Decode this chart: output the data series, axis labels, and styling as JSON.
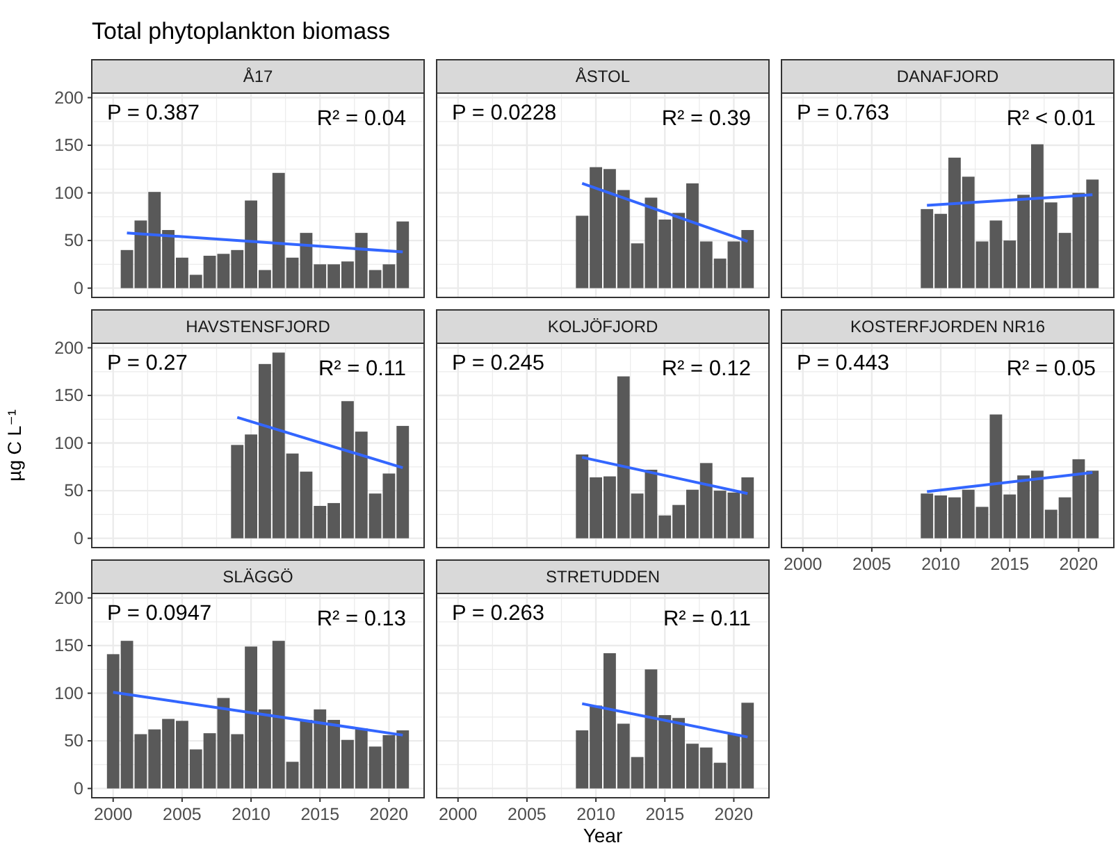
{
  "chart_data": [
    {
      "type": "bar",
      "title": "Total phytoplankton biomass",
      "subtitle": "Å17",
      "xlim": [
        1998.45,
        2022.55
      ],
      "ylim": [
        -9.75,
        204.75
      ],
      "xticks": [
        2000,
        2005,
        2010,
        2015,
        2020
      ],
      "yticks": [
        0,
        50,
        100,
        150,
        200
      ],
      "grid": true,
      "tick_labels": "y",
      "annotations": [
        "P = 0.387",
        "R² = 0.04"
      ],
      "series": [
        {
          "color": "#595959",
          "x": [
            2001,
            2002,
            2003,
            2004,
            2005,
            2006,
            2007,
            2008,
            2009,
            2010,
            2011,
            2012,
            2013,
            2014,
            2015,
            2016,
            2017,
            2018,
            2019,
            2020,
            2021
          ],
          "values": [
            40,
            71,
            101,
            61,
            32,
            14,
            34,
            36,
            40,
            92,
            19,
            121,
            32,
            58,
            25,
            25,
            28,
            58,
            19,
            25,
            70
          ]
        },
        {
          "type": "line",
          "color": "#3366ff",
          "x": [
            2001,
            2021
          ],
          "values": [
            58,
            38
          ]
        }
      ]
    },
    {
      "type": "bar",
      "subtitle": "ÅSTOL",
      "xlim": [
        1998.45,
        2022.55
      ],
      "ylim": [
        -9.75,
        204.75
      ],
      "xticks": [
        2000,
        2005,
        2010,
        2015,
        2020
      ],
      "yticks": [
        0,
        50,
        100,
        150,
        200
      ],
      "grid": true,
      "tick_labels": false,
      "annotations": [
        "P = 0.0228",
        "R² = 0.39"
      ],
      "series": [
        {
          "color": "#595959",
          "x": [
            2009,
            2010,
            2011,
            2012,
            2013,
            2014,
            2015,
            2016,
            2017,
            2018,
            2019,
            2020,
            2021
          ],
          "values": [
            76,
            127,
            125,
            103,
            47,
            95,
            72,
            79,
            110,
            49,
            31,
            49,
            61
          ]
        },
        {
          "type": "line",
          "color": "#3366ff",
          "x": [
            2009,
            2021
          ],
          "values": [
            110,
            49
          ]
        }
      ]
    },
    {
      "type": "bar",
      "subtitle": "DANAFJORD",
      "xlim": [
        1998.45,
        2022.55
      ],
      "ylim": [
        -9.75,
        204.75
      ],
      "xticks": [
        2000,
        2005,
        2010,
        2015,
        2020
      ],
      "yticks": [
        0,
        50,
        100,
        150,
        200
      ],
      "grid": true,
      "tick_labels": false,
      "annotations": [
        "P = 0.763",
        "R² < 0.01"
      ],
      "series": [
        {
          "color": "#595959",
          "x": [
            2009,
            2010,
            2011,
            2012,
            2013,
            2014,
            2015,
            2016,
            2017,
            2018,
            2019,
            2020,
            2021
          ],
          "values": [
            83,
            78,
            137,
            117,
            49,
            71,
            50,
            98,
            151,
            90,
            58,
            100,
            114
          ]
        },
        {
          "type": "line",
          "color": "#3366ff",
          "x": [
            2009,
            2021
          ],
          "values": [
            87,
            98
          ]
        }
      ]
    },
    {
      "type": "bar",
      "subtitle": "HAVSTENSFJORD",
      "ylabel": "µg C L⁻¹",
      "xlim": [
        1998.45,
        2022.55
      ],
      "ylim": [
        -9.75,
        204.75
      ],
      "xticks": [
        2000,
        2005,
        2010,
        2015,
        2020
      ],
      "yticks": [
        0,
        50,
        100,
        150,
        200
      ],
      "grid": true,
      "tick_labels": "y",
      "annotations": [
        "P = 0.27",
        "R² = 0.11"
      ],
      "series": [
        {
          "color": "#595959",
          "x": [
            2009,
            2010,
            2011,
            2012,
            2013,
            2014,
            2015,
            2016,
            2017,
            2018,
            2019,
            2020,
            2021
          ],
          "values": [
            98,
            109,
            183,
            195,
            89,
            70,
            34,
            37,
            144,
            112,
            47,
            68,
            118
          ]
        },
        {
          "type": "line",
          "color": "#3366ff",
          "x": [
            2009,
            2021
          ],
          "values": [
            127,
            74
          ]
        }
      ]
    },
    {
      "type": "bar",
      "subtitle": "KOLJÖFJORD",
      "xlim": [
        1998.45,
        2022.55
      ],
      "ylim": [
        -9.75,
        204.75
      ],
      "xticks": [
        2000,
        2005,
        2010,
        2015,
        2020
      ],
      "yticks": [
        0,
        50,
        100,
        150,
        200
      ],
      "grid": true,
      "tick_labels": false,
      "annotations": [
        "P = 0.245",
        "R² = 0.12"
      ],
      "series": [
        {
          "color": "#595959",
          "x": [
            2009,
            2010,
            2011,
            2012,
            2013,
            2014,
            2015,
            2016,
            2017,
            2018,
            2019,
            2020,
            2021
          ],
          "values": [
            88,
            64,
            65,
            170,
            47,
            72,
            24,
            35,
            51,
            79,
            50,
            48,
            64
          ]
        },
        {
          "type": "line",
          "color": "#3366ff",
          "x": [
            2009,
            2021
          ],
          "values": [
            85,
            47
          ]
        }
      ]
    },
    {
      "type": "bar",
      "subtitle": "KOSTERFJORDEN NR16",
      "xlim": [
        1998.45,
        2022.55
      ],
      "ylim": [
        -9.75,
        204.75
      ],
      "xticks": [
        2000,
        2005,
        2010,
        2015,
        2020
      ],
      "yticks": [
        0,
        50,
        100,
        150,
        200
      ],
      "grid": true,
      "tick_labels": "x",
      "annotations": [
        "P = 0.443",
        "R² = 0.05"
      ],
      "series": [
        {
          "color": "#595959",
          "x": [
            2009,
            2010,
            2011,
            2012,
            2013,
            2014,
            2015,
            2016,
            2017,
            2018,
            2019,
            2020,
            2021
          ],
          "values": [
            47,
            45,
            43,
            51,
            33,
            130,
            46,
            66,
            71,
            30,
            43,
            83,
            71
          ]
        },
        {
          "type": "line",
          "color": "#3366ff",
          "x": [
            2009,
            2021
          ],
          "values": [
            49,
            69
          ]
        }
      ]
    },
    {
      "type": "bar",
      "subtitle": "SLÄGGÖ",
      "xlim": [
        1998.45,
        2022.55
      ],
      "ylim": [
        -9.75,
        204.75
      ],
      "xticks": [
        2000,
        2005,
        2010,
        2015,
        2020
      ],
      "yticks": [
        0,
        50,
        100,
        150,
        200
      ],
      "grid": true,
      "annotations": [
        "P = 0.0947",
        "R² = 0.13"
      ],
      "series": [
        {
          "color": "#595959",
          "x": [
            2000,
            2001,
            2002,
            2003,
            2004,
            2005,
            2006,
            2007,
            2008,
            2009,
            2010,
            2011,
            2012,
            2013,
            2014,
            2015,
            2016,
            2017,
            2018,
            2019,
            2020,
            2021
          ],
          "values": [
            141,
            155,
            57,
            62,
            73,
            71,
            41,
            58,
            95,
            57,
            149,
            83,
            155,
            28,
            72,
            83,
            72,
            51,
            63,
            44,
            56,
            61
          ]
        },
        {
          "type": "line",
          "color": "#3366ff",
          "x": [
            2000,
            2021
          ],
          "values": [
            101,
            56
          ]
        }
      ]
    },
    {
      "type": "bar",
      "subtitle": "STRETUDDEN",
      "xlabel": "Year",
      "xlim": [
        1998.45,
        2022.55
      ],
      "ylim": [
        -9.75,
        204.75
      ],
      "xticks": [
        2000,
        2005,
        2010,
        2015,
        2020
      ],
      "yticks": [
        0,
        50,
        100,
        150,
        200
      ],
      "grid": true,
      "tick_labels": "x",
      "annotations": [
        "P = 0.263",
        "R² = 0.11"
      ],
      "series": [
        {
          "color": "#595959",
          "x": [
            2009,
            2010,
            2011,
            2012,
            2013,
            2014,
            2015,
            2016,
            2017,
            2018,
            2019,
            2020,
            2021
          ],
          "values": [
            61,
            87,
            142,
            68,
            33,
            125,
            77,
            74,
            47,
            43,
            27,
            57,
            90
          ]
        },
        {
          "type": "line",
          "color": "#3366ff",
          "x": [
            2009,
            2021
          ],
          "values": [
            89,
            54
          ]
        }
      ]
    }
  ]
}
